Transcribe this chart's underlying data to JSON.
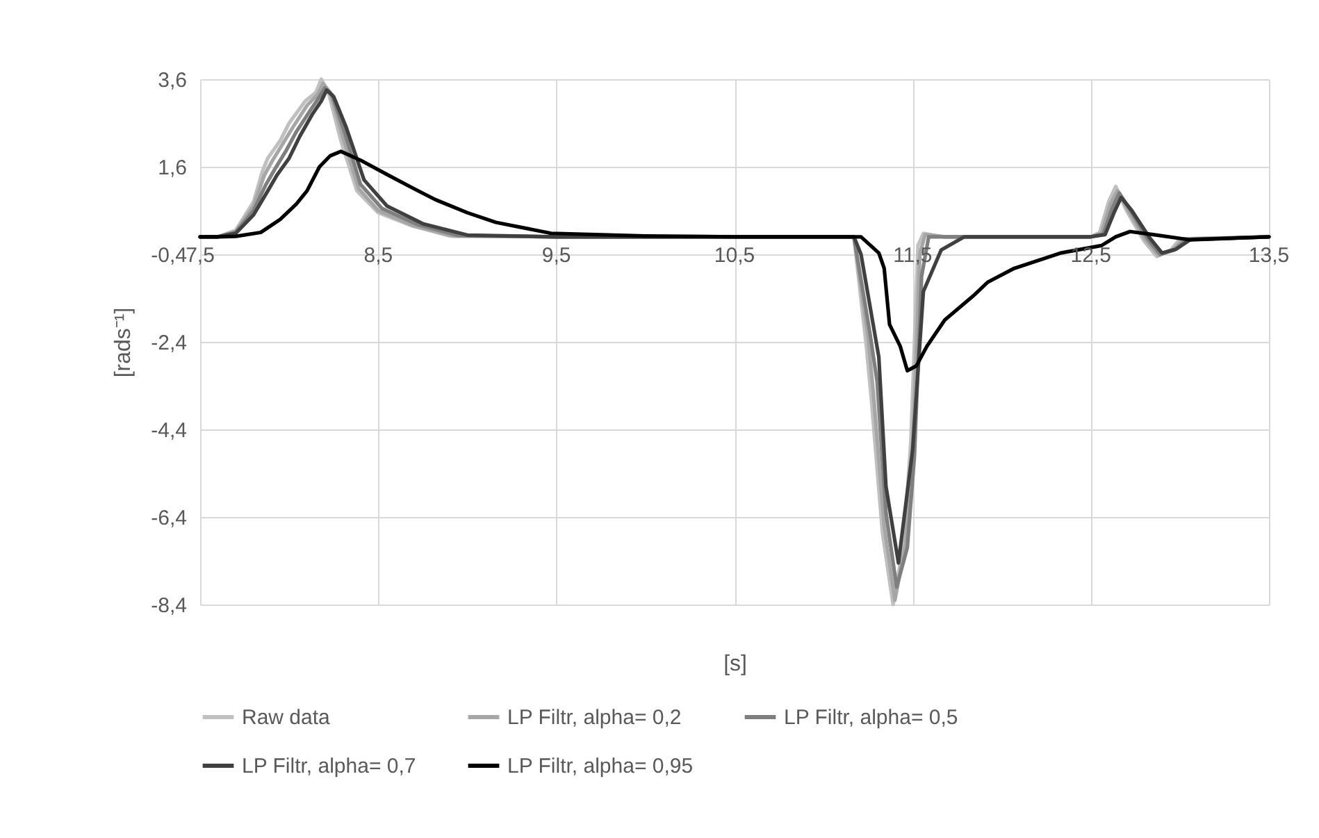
{
  "chart_data": {
    "type": "line",
    "xlabel": "[s]",
    "ylabel": "[rads⁻¹]",
    "xlim": [
      7.5,
      13.5
    ],
    "ylim": [
      -8.4,
      3.6
    ],
    "xticks": [
      {
        "value": 7.5,
        "label": "7,5"
      },
      {
        "value": 8.5,
        "label": "8,5"
      },
      {
        "value": 9.5,
        "label": "9,5"
      },
      {
        "value": 10.5,
        "label": "10,5"
      },
      {
        "value": 11.5,
        "label": "11,5"
      },
      {
        "value": 12.5,
        "label": "12,5"
      },
      {
        "value": 13.5,
        "label": "13,5"
      }
    ],
    "yticks": [
      {
        "value": -8.4,
        "label": "-8,4"
      },
      {
        "value": -6.4,
        "label": "-6,4"
      },
      {
        "value": -4.4,
        "label": "-4,4"
      },
      {
        "value": -2.4,
        "label": "-2,4"
      },
      {
        "value": -0.4,
        "label": "-0,4"
      },
      {
        "value": 1.6,
        "label": "1,6"
      },
      {
        "value": 3.6,
        "label": "3,6"
      }
    ],
    "grid": true,
    "legend": "bottom",
    "series": [
      {
        "name": "Raw data",
        "color": "#c0c0c0",
        "x": [
          7.5,
          7.6,
          7.7,
          7.8,
          7.85,
          7.88,
          7.95,
          8.0,
          8.09,
          8.15,
          8.18,
          8.22,
          8.29,
          8.38,
          8.5,
          8.69,
          8.9,
          9.5,
          10.5,
          11.17,
          11.24,
          11.27,
          11.33,
          11.39,
          11.45,
          11.49,
          11.53,
          11.56,
          11.67,
          12.5,
          12.55,
          12.6,
          12.64,
          12.7,
          12.8,
          12.87,
          12.95,
          13.0,
          13.5
        ],
        "values": [
          0,
          0,
          0.15,
          0.8,
          1.5,
          1.8,
          2.2,
          2.6,
          3.1,
          3.3,
          3.6,
          3.3,
          2.2,
          1.05,
          0.55,
          0.25,
          0.02,
          0,
          0,
          0,
          -2.5,
          -3.8,
          -6.75,
          -8.4,
          -7.0,
          -4.65,
          -0.2,
          0.08,
          0,
          0,
          0.1,
          0.8,
          1.15,
          0.6,
          -0.1,
          -0.45,
          -0.3,
          -0.05,
          0
        ]
      },
      {
        "name": "LP Filtr, alpha= 0,2",
        "color": "#a6a6a6",
        "x": [
          7.5,
          7.6,
          7.7,
          7.8,
          7.86,
          7.9,
          7.96,
          8.02,
          8.1,
          8.16,
          8.19,
          8.23,
          8.3,
          8.39,
          8.5,
          8.7,
          8.92,
          9.5,
          10.5,
          11.17,
          11.25,
          11.28,
          11.34,
          11.4,
          11.46,
          11.5,
          11.54,
          11.57,
          11.68,
          12.5,
          12.56,
          12.61,
          12.65,
          12.71,
          12.81,
          12.88,
          12.96,
          13.02,
          13.5
        ],
        "values": [
          0,
          0,
          0.12,
          0.7,
          1.4,
          1.7,
          2.1,
          2.5,
          3.0,
          3.25,
          3.5,
          3.3,
          2.3,
          1.1,
          0.6,
          0.25,
          0.02,
          0,
          0,
          0,
          -2.3,
          -3.6,
          -6.6,
          -8.3,
          -7.0,
          -4.8,
          -0.4,
          0.05,
          0,
          0,
          0.08,
          0.75,
          1.05,
          0.6,
          -0.08,
          -0.42,
          -0.3,
          -0.05,
          0
        ]
      },
      {
        "name": "LP Filtr, alpha= 0,5",
        "color": "#7f7f7f",
        "x": [
          7.5,
          7.6,
          7.7,
          7.8,
          7.87,
          7.92,
          7.98,
          8.04,
          8.12,
          8.17,
          8.2,
          8.24,
          8.31,
          8.4,
          8.52,
          8.72,
          8.95,
          9.5,
          10.5,
          11.17,
          11.26,
          11.3,
          11.35,
          11.41,
          11.47,
          11.51,
          11.55,
          11.59,
          11.7,
          12.5,
          12.57,
          12.62,
          12.66,
          12.72,
          12.82,
          12.89,
          12.97,
          13.04,
          13.5
        ],
        "values": [
          0,
          0,
          0.1,
          0.6,
          1.2,
          1.55,
          1.95,
          2.4,
          2.9,
          3.2,
          3.4,
          3.25,
          2.4,
          1.2,
          0.65,
          0.28,
          0.03,
          0,
          0,
          0,
          -2.2,
          -3.3,
          -6.3,
          -8.0,
          -7.1,
          -5.0,
          -0.9,
          0.0,
          0,
          0,
          0.06,
          0.65,
          1.0,
          0.62,
          -0.05,
          -0.4,
          -0.3,
          -0.06,
          0
        ]
      },
      {
        "name": "LP Filtr, alpha= 0,7",
        "color": "#404040",
        "x": [
          7.5,
          7.6,
          7.7,
          7.8,
          7.88,
          7.93,
          8.0,
          8.06,
          8.13,
          8.18,
          8.21,
          8.25,
          8.32,
          8.42,
          8.55,
          8.75,
          9.0,
          9.5,
          10.5,
          11.17,
          11.21,
          11.31,
          11.35,
          11.42,
          11.5,
          11.56,
          11.66,
          11.79,
          12.5,
          12.58,
          12.63,
          12.67,
          12.73,
          12.83,
          12.9,
          12.98,
          13.06,
          13.5
        ],
        "values": [
          0,
          0,
          0.08,
          0.5,
          1.05,
          1.4,
          1.8,
          2.3,
          2.8,
          3.1,
          3.35,
          3.2,
          2.5,
          1.3,
          0.7,
          0.3,
          0.04,
          0,
          0,
          0,
          -0.4,
          -2.75,
          -5.7,
          -7.45,
          -4.85,
          -1.25,
          -0.3,
          0,
          0,
          0.05,
          0.55,
          0.9,
          0.6,
          -0.02,
          -0.37,
          -0.28,
          -0.06,
          0
        ]
      },
      {
        "name": "LP Filtr, alpha= 0,95",
        "color": "#000000",
        "x": [
          7.5,
          7.6,
          7.7,
          7.84,
          7.95,
          8.04,
          8.1,
          8.17,
          8.23,
          8.29,
          8.4,
          8.56,
          8.7,
          8.82,
          9.0,
          9.16,
          9.47,
          10.0,
          10.5,
          11.21,
          11.31,
          11.34,
          11.37,
          11.43,
          11.47,
          11.52,
          11.58,
          11.68,
          11.84,
          11.92,
          12.07,
          12.33,
          12.56,
          12.64,
          12.72,
          12.85,
          13.06,
          13.5
        ],
        "values": [
          0,
          0,
          0.01,
          0.1,
          0.4,
          0.75,
          1.05,
          1.6,
          1.85,
          1.95,
          1.75,
          1.4,
          1.1,
          0.85,
          0.55,
          0.33,
          0.08,
          0.02,
          0,
          0,
          -0.37,
          -0.72,
          -2.0,
          -2.5,
          -3.06,
          -2.95,
          -2.5,
          -1.9,
          -1.35,
          -1.04,
          -0.72,
          -0.37,
          -0.2,
          0.0,
          0.12,
          0.05,
          -0.07,
          0
        ]
      }
    ]
  }
}
